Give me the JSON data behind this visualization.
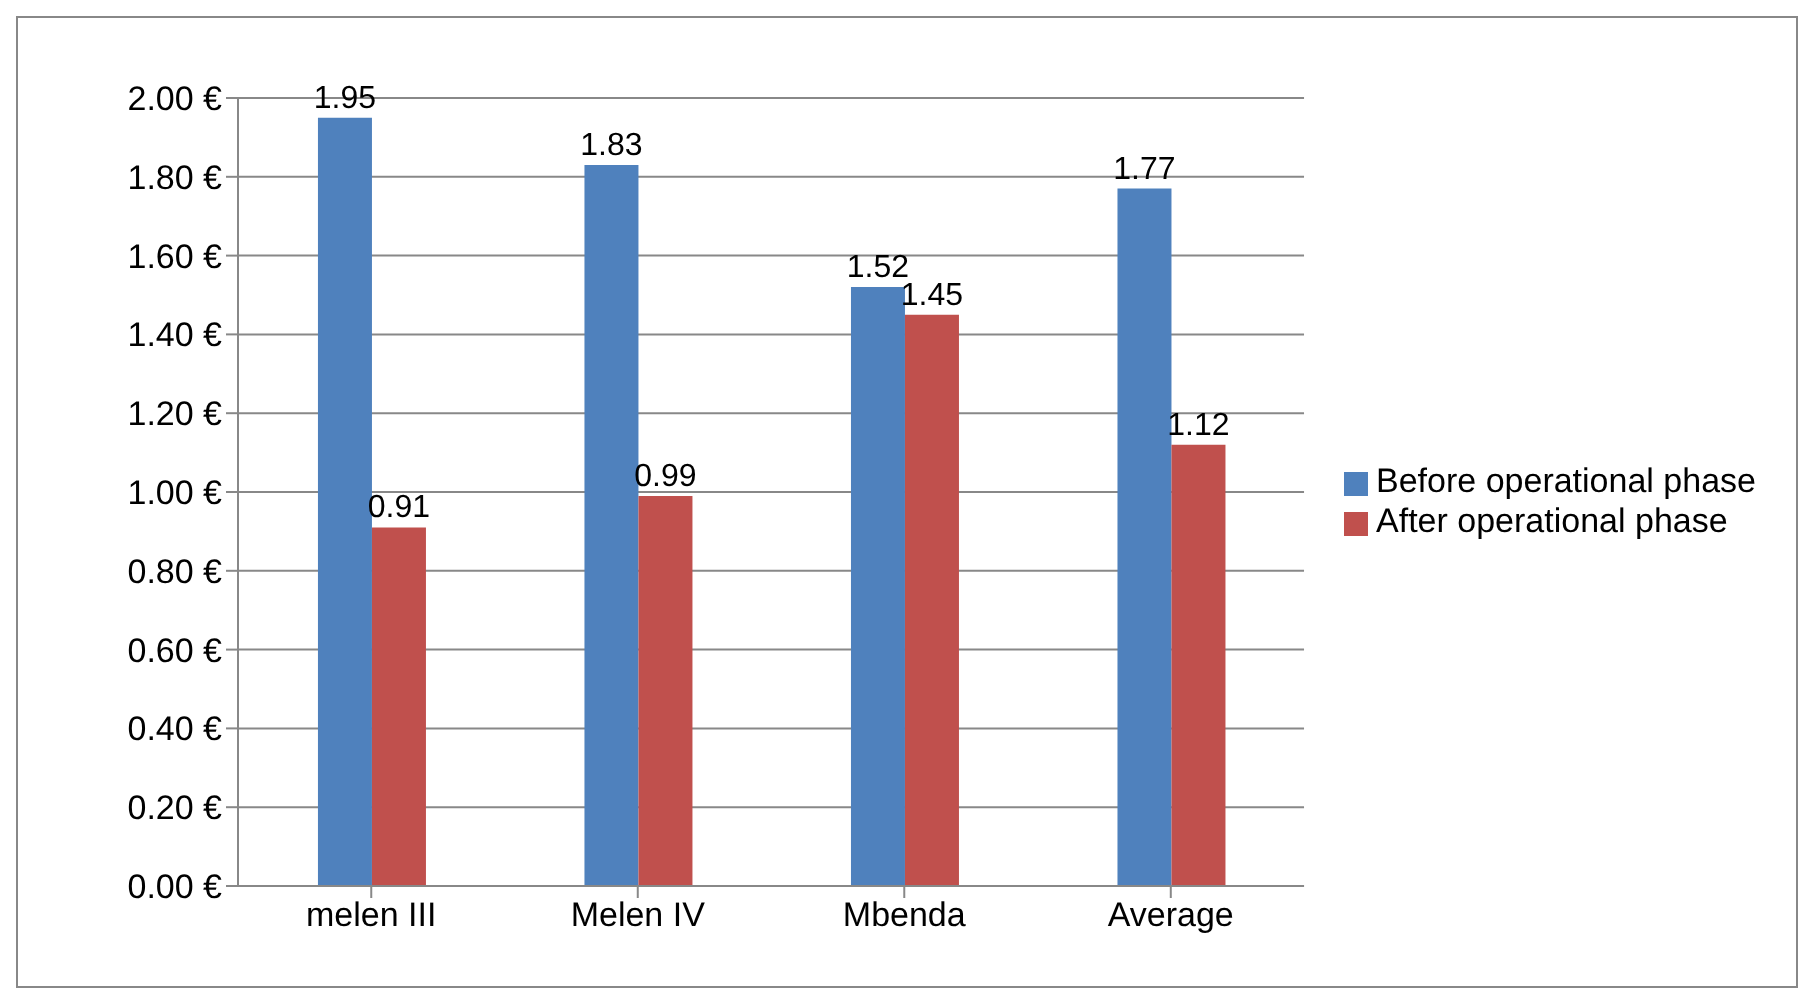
{
  "chart_data": {
    "type": "bar",
    "categories": [
      "melen III",
      "Melen IV",
      "Mbenda",
      "Average"
    ],
    "series": [
      {
        "name": "Before operational phase",
        "color": "#4f81bd",
        "values": [
          1.95,
          1.83,
          1.52,
          1.77
        ]
      },
      {
        "name": "After operational phase",
        "color": "#c0504d",
        "values": [
          0.91,
          0.99,
          1.45,
          1.12
        ]
      }
    ],
    "ylim": [
      0,
      2
    ],
    "yticks": [
      {
        "value": 0,
        "label": "0.00 €"
      },
      {
        "value": 0.2,
        "label": "0.20 €"
      },
      {
        "value": 0.4,
        "label": "0.40 €"
      },
      {
        "value": 0.6,
        "label": "0.60 €"
      },
      {
        "value": 0.8,
        "label": "0.80 €"
      },
      {
        "value": 1,
        "label": "1.00 €"
      },
      {
        "value": 1.2,
        "label": "1.20 €"
      },
      {
        "value": 1.4,
        "label": "1.40 €"
      },
      {
        "value": 1.6,
        "label": "1.60 €"
      },
      {
        "value": 1.8,
        "label": "1.80 €"
      },
      {
        "value": 2,
        "label": "2.00 €"
      }
    ],
    "grid": "y",
    "legend": "right",
    "data_labels": true
  }
}
